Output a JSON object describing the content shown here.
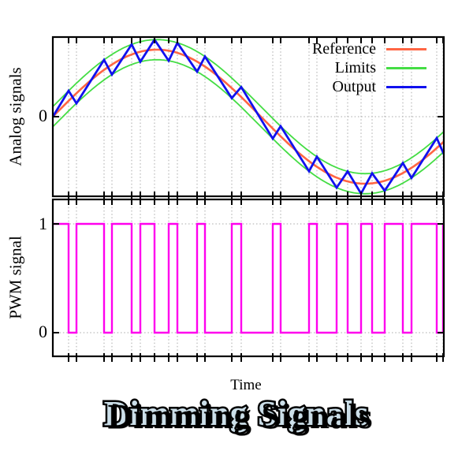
{
  "figure": {
    "title": "Dimming Signals",
    "x_axis_label": "Time"
  },
  "colors": {
    "reference": "#ff6644",
    "limits": "#44dd44",
    "output": "#1111ee",
    "pwm": "#ff00ee",
    "frame": "#000000",
    "grid": "#a8a8a8",
    "title_fill": "#ccdfe9",
    "title_outline": "#000000",
    "background": "#ffffff"
  },
  "top_plot": {
    "ylabel": "Analog signals",
    "ytick_labels": {
      "zero": "0"
    },
    "legend": [
      {
        "label": "Reference",
        "color_key": "reference"
      },
      {
        "label": "Limits",
        "color_key": "limits"
      },
      {
        "label": "Output",
        "color_key": "output"
      }
    ]
  },
  "bottom_plot": {
    "ylabel": "PWM signal",
    "ytick_labels": {
      "one": "1",
      "zero": "0"
    }
  },
  "chart_data": [
    {
      "type": "line",
      "title": "Analog signals",
      "xlabel": "Time",
      "ylabel": "Analog signals",
      "x_unit": "sine periods (no numeric x ticks shown)",
      "xlim": [
        0,
        0.939
      ],
      "ylim": [
        -1.2,
        1.2
      ],
      "ytick_values": [
        0
      ],
      "grid": "vertical dotted lines at every switching time, horizontal dotted line at 0",
      "legend_position": "top-right, no border",
      "series": [
        {
          "name": "Reference",
          "color_key": "reference",
          "description": "sin(2*pi*t), amplitude 1, zero at t=0"
        },
        {
          "name": "Limits",
          "color_key": "limits",
          "delta": 0.15,
          "description": "two curves: sin(2*pi*t) + 0.15 and sin(2*pi*t) - 0.15"
        },
        {
          "name": "Output",
          "color_key": "output",
          "description": "piecewise-linear delta-modulator output starting at (0,0); rises while PWM is high, falls while low; vertices alternate on upper limit (at falls) and lower limit (at rises) at the switch times"
        }
      ],
      "switch_times": [
        0.0379,
        0.0568,
        0.1231,
        0.142,
        0.1894,
        0.2102,
        0.2443,
        0.2784,
        0.2992,
        0.3466,
        0.3655,
        0.4299,
        0.4527,
        0.5284,
        0.5473,
        0.6155,
        0.6345,
        0.6818,
        0.7083,
        0.7405,
        0.767,
        0.7973,
        0.8409,
        0.8617,
        0.9223,
        0.9375
      ]
    },
    {
      "type": "line",
      "title": "PWM signal",
      "xlabel": "Time",
      "ylabel": "PWM signal",
      "xlim": [
        0,
        0.939
      ],
      "ylim": [
        -0.225,
        1.232
      ],
      "ytick_values": [
        0,
        1
      ],
      "levels": {
        "high": 1,
        "low": 0
      },
      "initial_level": 1,
      "final_level": 1,
      "color_key": "pwm",
      "grid": "vertical dotted lines at every toggle time, horizontal dotted lines at 0 and 1",
      "toggle_times": [
        0.0379,
        0.0568,
        0.1231,
        0.142,
        0.1894,
        0.2102,
        0.2443,
        0.2784,
        0.2992,
        0.3466,
        0.3655,
        0.4299,
        0.4527,
        0.5284,
        0.5473,
        0.6155,
        0.6345,
        0.6818,
        0.7083,
        0.7405,
        0.767,
        0.7973,
        0.8409,
        0.8617,
        0.9223,
        0.9375
      ]
    }
  ]
}
